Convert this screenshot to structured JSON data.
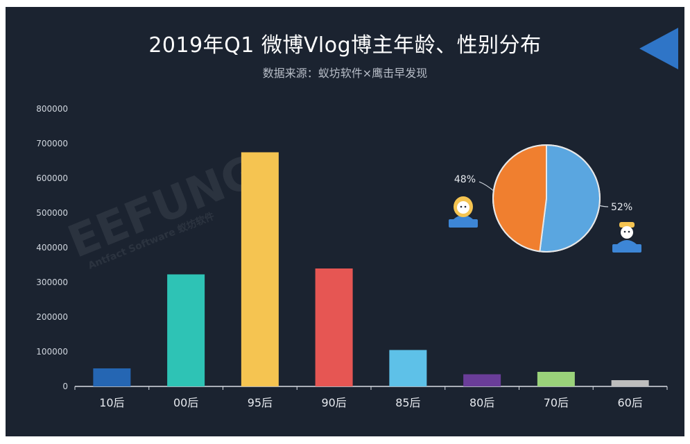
{
  "page": {
    "title": "2019年Q1 微博Vlog博主年龄、性别分布",
    "subtitle": "数据来源：蚁坊软件×鹰击早发现",
    "watermark": "EEFUNG",
    "watermark_sub": "Antfact Software 蚁坊软件"
  },
  "colors": {
    "background": "#1b2330",
    "female": "#f07f2f",
    "male": "#5aa6e0",
    "arrow": "#2f75c7"
  },
  "chart_data": [
    {
      "type": "bar",
      "categories": [
        "10后",
        "00后",
        "95后",
        "90后",
        "85后",
        "80后",
        "70后",
        "60后"
      ],
      "values": [
        52000,
        323000,
        675000,
        340000,
        105000,
        35000,
        42000,
        18000
      ],
      "colors": [
        "#2566b3",
        "#2ec3b5",
        "#f5c451",
        "#e65653",
        "#5ec1e8",
        "#6a3d99",
        "#9ad27a",
        "#bdbdbd"
      ],
      "ylim": [
        0,
        800000
      ],
      "yticks": [
        0,
        100000,
        200000,
        300000,
        400000,
        500000,
        600000,
        700000,
        800000
      ],
      "grid": false
    },
    {
      "type": "pie",
      "slices": [
        {
          "label": "48%",
          "value": 48,
          "color": "#f07f2f",
          "icon": "female-avatar-icon"
        },
        {
          "label": "52%",
          "value": 52,
          "color": "#5aa6e0",
          "icon": "male-avatar-icon"
        }
      ]
    }
  ]
}
